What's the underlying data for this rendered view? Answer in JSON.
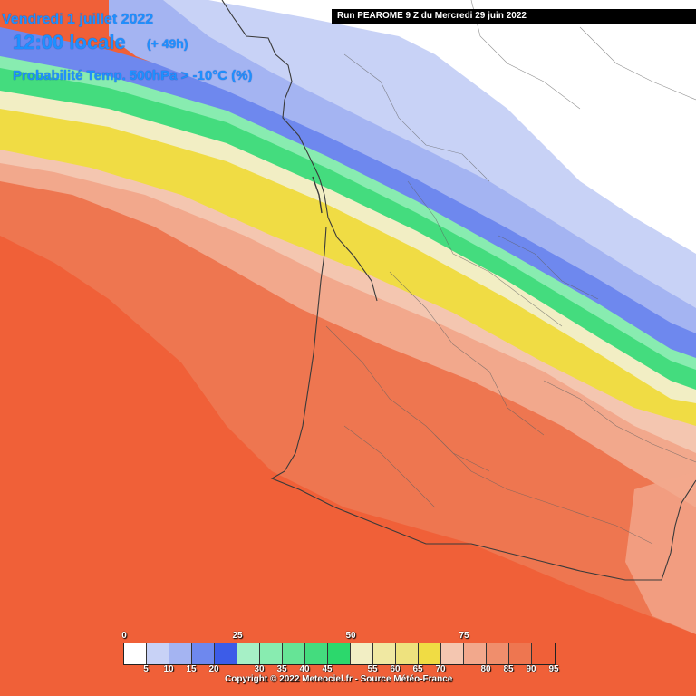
{
  "header": {
    "date": "Vendredi 1 juillet 2022",
    "time": "12:00 locale",
    "lead": "(+ 49h)",
    "parameter": "Probabilité Temp. 500hPa > -10°C (%)",
    "run": "Run PEAROME 9 Z du Mercredi 29 juin 2022"
  },
  "legend": {
    "top_ticks": [
      "0",
      "25",
      "50",
      "75"
    ],
    "bottom_ticks": [
      "5",
      "10",
      "15",
      "20",
      "30",
      "35",
      "40",
      "45",
      "55",
      "60",
      "65",
      "70",
      "80",
      "85",
      "90",
      "95"
    ],
    "colors": [
      "#ffffff",
      "#c8d2f6",
      "#a4b4f2",
      "#6e88ee",
      "#3c5ce8",
      "#a6f0c6",
      "#88ecb0",
      "#66e496",
      "#44dc7e",
      "#2cd86c",
      "#f2eec4",
      "#f0e8a2",
      "#eee27e",
      "#f0dc44",
      "#f4c6b0",
      "#f2a88c",
      "#f08e6c",
      "#ee7650",
      "#f06038"
    ]
  },
  "copyright": "Copyright © 2022 Meteociel.fr - Source Météo-France",
  "map": {
    "region": "Sud-Ouest France",
    "band_colors": {
      "white": "#ffffff",
      "very_light_blue": "#c8d2f6",
      "light_blue": "#a4b4f2",
      "blue": "#6e88ee",
      "green_light": "#88ecb0",
      "green": "#44dc7e",
      "yellow_light": "#f2eec4",
      "yellow": "#f0dc44",
      "salmon_light": "#f4c6b0",
      "salmon": "#f2a88c",
      "orange": "#ee7650",
      "red_orange": "#f06038"
    }
  }
}
